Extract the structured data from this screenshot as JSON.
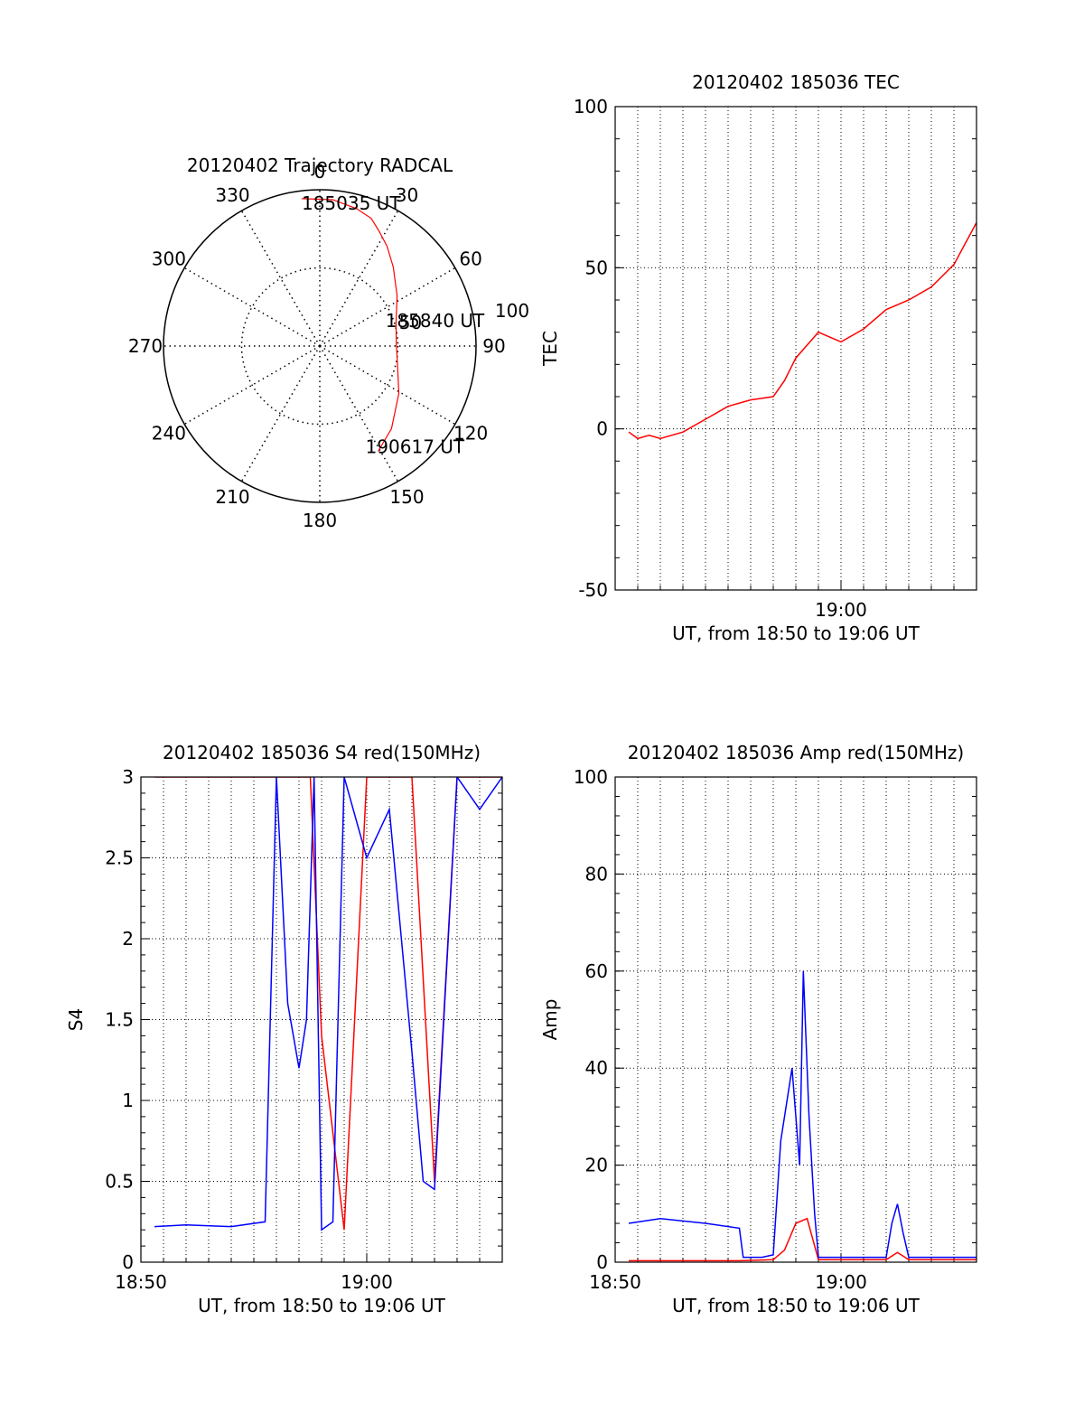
{
  "colors": {
    "red": "#ff0000",
    "blue": "#0000ff",
    "axis": "#000000",
    "grid": "#000000"
  },
  "chart_data": [
    {
      "id": "trajectory",
      "type": "scatter",
      "subtype": "polar",
      "title": "20120402 Trajectory RADCAL",
      "radial_ticks": [
        "50",
        "100"
      ],
      "angle_labels": [
        "0",
        "30",
        "60",
        "90",
        "120",
        "150",
        "180",
        "210",
        "240",
        "270",
        "300",
        "330"
      ],
      "track": {
        "color": "red",
        "azimuth_deg": [
          353,
          5,
          15,
          22,
          27,
          34,
          43,
          57,
          73,
          88,
          103,
          121,
          139,
          151
        ],
        "radius": [
          95,
          94,
          91,
          88,
          83,
          77,
          69,
          59,
          51,
          49,
          51,
          59,
          70,
          77
        ]
      },
      "point_labels": [
        "185035 UT",
        "185840 UT",
        "190617 UT"
      ]
    },
    {
      "id": "tec",
      "type": "line",
      "title": "20120402 185036 TEC",
      "ylabel": "TEC",
      "xlabel": "UT, from 18:50 to 19:06 UT",
      "xlim": [
        0,
        16
      ],
      "ylim": [
        -50,
        100
      ],
      "yticks": [
        "-50",
        "0",
        "50",
        "100"
      ],
      "xticks": [
        {
          "t": 10,
          "label": "19:00"
        }
      ],
      "grid": true,
      "series": [
        {
          "color": "red",
          "x": [
            "18:50:36",
            "18:51:00",
            "18:51:30",
            "18:52:00",
            "18:53:00",
            "18:54:00",
            "18:55:00",
            "18:56:00",
            "18:57:00",
            "18:57:30",
            "18:58:00",
            "18:59:00",
            "19:00:00",
            "19:01:00",
            "19:02:00",
            "19:03:00",
            "19:04:00",
            "19:05:00",
            "19:06:00"
          ],
          "values": [
            -1,
            -3,
            -2,
            -3,
            -1,
            3,
            7,
            9,
            10,
            15,
            22,
            30,
            27,
            31,
            37,
            40,
            44,
            51,
            64
          ]
        }
      ]
    },
    {
      "id": "s4",
      "type": "line",
      "title": "20120402 185036 S4 red(150MHz)",
      "ylabel": "S4",
      "xlabel": "UT, from 18:50 to 19:06 UT",
      "xlim": [
        0,
        16
      ],
      "ylim": [
        0,
        3
      ],
      "yticks": [
        "0",
        "0.5",
        "1",
        "1.5",
        "2",
        "2.5",
        "3"
      ],
      "xticks": [
        {
          "t": 0,
          "label": "18:50"
        },
        {
          "t": 10,
          "label": "19:00"
        }
      ],
      "grid": true,
      "series": [
        {
          "color": "red",
          "x": [
            "18:50:36",
            "18:53:00",
            "18:55:00",
            "18:57:30",
            "18:58:00",
            "18:59:00",
            "19:00:00",
            "19:02:00",
            "19:03:00",
            "19:04:00",
            "19:05:00",
            "19:06:00"
          ],
          "values": [
            3,
            3,
            3,
            3,
            1.4,
            0.2,
            3,
            3,
            0.5,
            3,
            3,
            3
          ]
        },
        {
          "color": "blue",
          "x": [
            "18:50:36",
            "18:52:00",
            "18:54:00",
            "18:55:30",
            "18:56:00",
            "18:56:30",
            "18:57:00",
            "18:57:20",
            "18:57:40",
            "18:58:00",
            "18:58:30",
            "18:59:00",
            "19:00:00",
            "19:01:00",
            "19:02:00",
            "19:02:30",
            "19:03:00",
            "19:04:00",
            "19:05:00",
            "19:06:00"
          ],
          "values": [
            0.22,
            0.23,
            0.22,
            0.25,
            3,
            1.6,
            1.2,
            1.5,
            3,
            0.2,
            0.25,
            3,
            2.5,
            2.8,
            1.3,
            0.5,
            0.45,
            3,
            2.8,
            3
          ]
        }
      ]
    },
    {
      "id": "amp",
      "type": "line",
      "title": "20120402 185036 Amp red(150MHz)",
      "ylabel": "Amp",
      "xlabel": "UT, from 18:50 to 19:06 UT",
      "xlim": [
        0,
        16
      ],
      "ylim": [
        0,
        100
      ],
      "yticks": [
        "0",
        "20",
        "40",
        "60",
        "80",
        "100"
      ],
      "xticks": [
        {
          "t": 0,
          "label": "18:50"
        },
        {
          "t": 10,
          "label": "19:00"
        }
      ],
      "grid": true,
      "series": [
        {
          "color": "red",
          "x": [
            "18:50:36",
            "18:55:30",
            "18:57:00",
            "18:57:30",
            "18:58:00",
            "18:58:30",
            "18:59:00",
            "19:02:00",
            "19:02:30",
            "19:03:00",
            "19:06:00"
          ],
          "values": [
            0.3,
            0.3,
            0.5,
            2.5,
            8,
            9,
            0.5,
            0.5,
            2,
            0.5,
            0.5
          ]
        },
        {
          "color": "blue",
          "x": [
            "18:50:36",
            "18:52:00",
            "18:54:00",
            "18:55:30",
            "18:55:40",
            "18:56:30",
            "18:57:00",
            "18:57:20",
            "18:57:50",
            "18:58:10",
            "18:58:20",
            "18:58:35",
            "18:58:50",
            "18:59:00",
            "19:02:00",
            "19:02:15",
            "19:02:30",
            "19:02:45",
            "19:03:00",
            "19:06:00"
          ],
          "values": [
            8,
            9,
            8,
            7,
            1,
            1,
            1.5,
            25,
            40,
            20,
            60,
            30,
            10,
            1,
            1,
            8,
            12,
            6,
            1,
            1
          ]
        }
      ]
    }
  ]
}
